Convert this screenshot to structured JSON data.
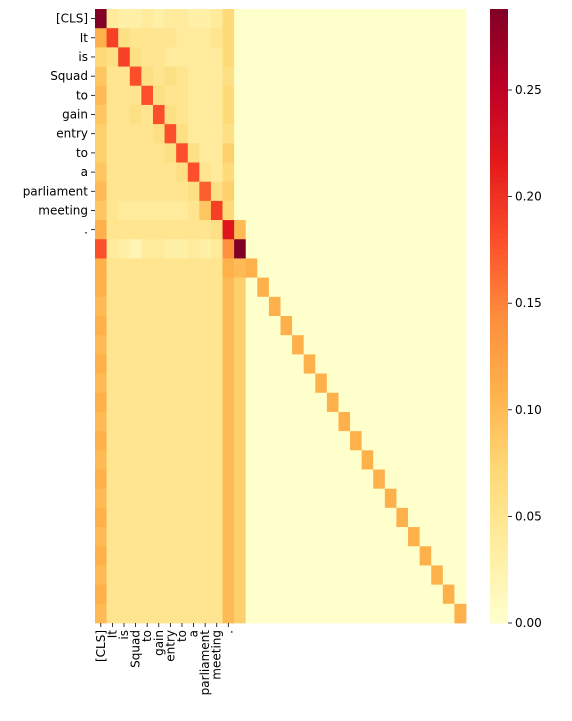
{
  "chart_data": {
    "type": "heatmap",
    "title": "",
    "xlabel": "",
    "ylabel": "",
    "tokens": [
      "[CLS]",
      "It",
      "is",
      "Squad",
      "to",
      "gain",
      "entry",
      "to",
      "a",
      "parliament",
      "meeting",
      "."
    ],
    "row_labels": [
      "[CLS]",
      "It",
      "is",
      "Squad",
      "to",
      "gain",
      "entry",
      "to",
      "a",
      "parliament",
      "meeting",
      "."
    ],
    "col_labels": [
      "[CLS]",
      "It",
      "is",
      "Squad",
      "to",
      "gain",
      "entry",
      "to",
      "a",
      "parliament",
      "meeting",
      "."
    ],
    "n_rows": 32,
    "n_cols": 32,
    "colormap": "YlOrRd",
    "colorbar": {
      "vmin": 0.0,
      "vmax": 0.288,
      "ticks": [
        0.0,
        0.05,
        0.1,
        0.15,
        0.2,
        0.25
      ],
      "tick_labels": [
        "0.00",
        "0.05",
        "0.10",
        "0.15",
        "0.20",
        "0.25"
      ]
    },
    "values": [
      [
        0.29,
        0.04,
        0.03,
        0.03,
        0.04,
        0.03,
        0.04,
        0.04,
        0.03,
        0.03,
        0.04,
        0.07,
        0.0,
        0.0,
        0.0,
        0.0,
        0.0,
        0.0,
        0.0,
        0.0,
        0.0,
        0.0,
        0.0,
        0.0,
        0.0,
        0.0,
        0.0,
        0.0,
        0.0,
        0.0,
        0.0,
        0.0
      ],
      [
        0.11,
        0.19,
        0.06,
        0.05,
        0.05,
        0.05,
        0.05,
        0.04,
        0.04,
        0.04,
        0.05,
        0.07,
        0.0,
        0.0,
        0.0,
        0.0,
        0.0,
        0.0,
        0.0,
        0.0,
        0.0,
        0.0,
        0.0,
        0.0,
        0.0,
        0.0,
        0.0,
        0.0,
        0.0,
        0.0,
        0.0,
        0.0
      ],
      [
        0.07,
        0.06,
        0.19,
        0.06,
        0.05,
        0.05,
        0.04,
        0.04,
        0.04,
        0.04,
        0.04,
        0.07,
        0.0,
        0.0,
        0.0,
        0.0,
        0.0,
        0.0,
        0.0,
        0.0,
        0.0,
        0.0,
        0.0,
        0.0,
        0.0,
        0.0,
        0.0,
        0.0,
        0.0,
        0.0,
        0.0,
        0.0
      ],
      [
        0.09,
        0.05,
        0.05,
        0.18,
        0.06,
        0.05,
        0.06,
        0.05,
        0.04,
        0.04,
        0.04,
        0.06,
        0.0,
        0.0,
        0.0,
        0.0,
        0.0,
        0.0,
        0.0,
        0.0,
        0.0,
        0.0,
        0.0,
        0.0,
        0.0,
        0.0,
        0.0,
        0.0,
        0.0,
        0.0,
        0.0,
        0.0
      ],
      [
        0.1,
        0.05,
        0.05,
        0.05,
        0.18,
        0.06,
        0.05,
        0.05,
        0.04,
        0.04,
        0.04,
        0.07,
        0.0,
        0.0,
        0.0,
        0.0,
        0.0,
        0.0,
        0.0,
        0.0,
        0.0,
        0.0,
        0.0,
        0.0,
        0.0,
        0.0,
        0.0,
        0.0,
        0.0,
        0.0,
        0.0,
        0.0
      ],
      [
        0.09,
        0.05,
        0.05,
        0.06,
        0.05,
        0.18,
        0.06,
        0.05,
        0.04,
        0.04,
        0.04,
        0.07,
        0.0,
        0.0,
        0.0,
        0.0,
        0.0,
        0.0,
        0.0,
        0.0,
        0.0,
        0.0,
        0.0,
        0.0,
        0.0,
        0.0,
        0.0,
        0.0,
        0.0,
        0.0,
        0.0,
        0.0
      ],
      [
        0.08,
        0.05,
        0.05,
        0.05,
        0.05,
        0.06,
        0.18,
        0.06,
        0.04,
        0.04,
        0.04,
        0.06,
        0.0,
        0.0,
        0.0,
        0.0,
        0.0,
        0.0,
        0.0,
        0.0,
        0.0,
        0.0,
        0.0,
        0.0,
        0.0,
        0.0,
        0.0,
        0.0,
        0.0,
        0.0,
        0.0,
        0.0
      ],
      [
        0.08,
        0.05,
        0.05,
        0.05,
        0.05,
        0.05,
        0.06,
        0.18,
        0.06,
        0.04,
        0.04,
        0.08,
        0.0,
        0.0,
        0.0,
        0.0,
        0.0,
        0.0,
        0.0,
        0.0,
        0.0,
        0.0,
        0.0,
        0.0,
        0.0,
        0.0,
        0.0,
        0.0,
        0.0,
        0.0,
        0.0,
        0.0
      ],
      [
        0.09,
        0.05,
        0.05,
        0.05,
        0.05,
        0.05,
        0.05,
        0.06,
        0.18,
        0.05,
        0.04,
        0.07,
        0.0,
        0.0,
        0.0,
        0.0,
        0.0,
        0.0,
        0.0,
        0.0,
        0.0,
        0.0,
        0.0,
        0.0,
        0.0,
        0.0,
        0.0,
        0.0,
        0.0,
        0.0,
        0.0,
        0.0
      ],
      [
        0.1,
        0.05,
        0.05,
        0.05,
        0.05,
        0.05,
        0.05,
        0.05,
        0.06,
        0.17,
        0.06,
        0.08,
        0.0,
        0.0,
        0.0,
        0.0,
        0.0,
        0.0,
        0.0,
        0.0,
        0.0,
        0.0,
        0.0,
        0.0,
        0.0,
        0.0,
        0.0,
        0.0,
        0.0,
        0.0,
        0.0,
        0.0
      ],
      [
        0.09,
        0.05,
        0.04,
        0.04,
        0.04,
        0.04,
        0.04,
        0.04,
        0.05,
        0.09,
        0.19,
        0.07,
        0.0,
        0.0,
        0.0,
        0.0,
        0.0,
        0.0,
        0.0,
        0.0,
        0.0,
        0.0,
        0.0,
        0.0,
        0.0,
        0.0,
        0.0,
        0.0,
        0.0,
        0.0,
        0.0,
        0.0
      ],
      [
        0.11,
        0.05,
        0.05,
        0.05,
        0.05,
        0.05,
        0.05,
        0.05,
        0.05,
        0.05,
        0.06,
        0.22,
        0.1,
        0.0,
        0.0,
        0.0,
        0.0,
        0.0,
        0.0,
        0.0,
        0.0,
        0.0,
        0.0,
        0.0,
        0.0,
        0.0,
        0.0,
        0.0,
        0.0,
        0.0,
        0.0,
        0.0
      ],
      [
        0.18,
        0.04,
        0.03,
        0.02,
        0.04,
        0.04,
        0.03,
        0.03,
        0.04,
        0.03,
        0.04,
        0.14,
        0.29,
        0.0,
        0.0,
        0.0,
        0.0,
        0.0,
        0.0,
        0.0,
        0.0,
        0.0,
        0.0,
        0.0,
        0.0,
        0.0,
        0.0,
        0.0,
        0.0,
        0.0,
        0.0,
        0.0
      ],
      [
        0.11,
        0.05,
        0.05,
        0.05,
        0.05,
        0.05,
        0.05,
        0.05,
        0.05,
        0.05,
        0.05,
        0.11,
        0.1,
        0.11,
        0.0,
        0.0,
        0.0,
        0.0,
        0.0,
        0.0,
        0.0,
        0.0,
        0.0,
        0.0,
        0.0,
        0.0,
        0.0,
        0.0,
        0.0,
        0.0,
        0.0,
        0.0
      ],
      [
        0.11,
        0.05,
        0.05,
        0.05,
        0.05,
        0.05,
        0.05,
        0.05,
        0.05,
        0.05,
        0.05,
        0.1,
        0.08,
        0.0,
        0.11,
        0.0,
        0.0,
        0.0,
        0.0,
        0.0,
        0.0,
        0.0,
        0.0,
        0.0,
        0.0,
        0.0,
        0.0,
        0.0,
        0.0,
        0.0,
        0.0,
        0.0
      ],
      [
        0.1,
        0.05,
        0.05,
        0.05,
        0.05,
        0.05,
        0.05,
        0.05,
        0.05,
        0.05,
        0.05,
        0.1,
        0.08,
        0.0,
        0.0,
        0.11,
        0.0,
        0.0,
        0.0,
        0.0,
        0.0,
        0.0,
        0.0,
        0.0,
        0.0,
        0.0,
        0.0,
        0.0,
        0.0,
        0.0,
        0.0,
        0.0
      ],
      [
        0.11,
        0.05,
        0.05,
        0.05,
        0.05,
        0.05,
        0.05,
        0.05,
        0.05,
        0.05,
        0.05,
        0.1,
        0.08,
        0.0,
        0.0,
        0.0,
        0.11,
        0.0,
        0.0,
        0.0,
        0.0,
        0.0,
        0.0,
        0.0,
        0.0,
        0.0,
        0.0,
        0.0,
        0.0,
        0.0,
        0.0,
        0.0
      ],
      [
        0.1,
        0.05,
        0.05,
        0.05,
        0.05,
        0.05,
        0.05,
        0.05,
        0.05,
        0.05,
        0.05,
        0.1,
        0.08,
        0.0,
        0.0,
        0.0,
        0.0,
        0.11,
        0.0,
        0.0,
        0.0,
        0.0,
        0.0,
        0.0,
        0.0,
        0.0,
        0.0,
        0.0,
        0.0,
        0.0,
        0.0,
        0.0
      ],
      [
        0.11,
        0.05,
        0.05,
        0.05,
        0.05,
        0.05,
        0.05,
        0.05,
        0.05,
        0.05,
        0.05,
        0.1,
        0.08,
        0.0,
        0.0,
        0.0,
        0.0,
        0.0,
        0.11,
        0.0,
        0.0,
        0.0,
        0.0,
        0.0,
        0.0,
        0.0,
        0.0,
        0.0,
        0.0,
        0.0,
        0.0,
        0.0
      ],
      [
        0.1,
        0.05,
        0.05,
        0.05,
        0.05,
        0.05,
        0.05,
        0.05,
        0.05,
        0.05,
        0.05,
        0.1,
        0.08,
        0.0,
        0.0,
        0.0,
        0.0,
        0.0,
        0.0,
        0.11,
        0.0,
        0.0,
        0.0,
        0.0,
        0.0,
        0.0,
        0.0,
        0.0,
        0.0,
        0.0,
        0.0,
        0.0
      ],
      [
        0.11,
        0.05,
        0.05,
        0.05,
        0.05,
        0.05,
        0.05,
        0.05,
        0.05,
        0.05,
        0.05,
        0.1,
        0.08,
        0.0,
        0.0,
        0.0,
        0.0,
        0.0,
        0.0,
        0.0,
        0.11,
        0.0,
        0.0,
        0.0,
        0.0,
        0.0,
        0.0,
        0.0,
        0.0,
        0.0,
        0.0,
        0.0
      ],
      [
        0.1,
        0.05,
        0.05,
        0.05,
        0.05,
        0.05,
        0.05,
        0.05,
        0.05,
        0.05,
        0.05,
        0.1,
        0.08,
        0.0,
        0.0,
        0.0,
        0.0,
        0.0,
        0.0,
        0.0,
        0.0,
        0.11,
        0.0,
        0.0,
        0.0,
        0.0,
        0.0,
        0.0,
        0.0,
        0.0,
        0.0,
        0.0
      ],
      [
        0.11,
        0.05,
        0.05,
        0.05,
        0.05,
        0.05,
        0.05,
        0.05,
        0.05,
        0.05,
        0.05,
        0.1,
        0.08,
        0.0,
        0.0,
        0.0,
        0.0,
        0.0,
        0.0,
        0.0,
        0.0,
        0.0,
        0.11,
        0.0,
        0.0,
        0.0,
        0.0,
        0.0,
        0.0,
        0.0,
        0.0,
        0.0
      ],
      [
        0.1,
        0.05,
        0.05,
        0.05,
        0.05,
        0.05,
        0.05,
        0.05,
        0.05,
        0.05,
        0.05,
        0.1,
        0.08,
        0.0,
        0.0,
        0.0,
        0.0,
        0.0,
        0.0,
        0.0,
        0.0,
        0.0,
        0.0,
        0.11,
        0.0,
        0.0,
        0.0,
        0.0,
        0.0,
        0.0,
        0.0,
        0.0
      ],
      [
        0.11,
        0.05,
        0.05,
        0.05,
        0.05,
        0.05,
        0.05,
        0.05,
        0.05,
        0.05,
        0.05,
        0.1,
        0.08,
        0.0,
        0.0,
        0.0,
        0.0,
        0.0,
        0.0,
        0.0,
        0.0,
        0.0,
        0.0,
        0.0,
        0.11,
        0.0,
        0.0,
        0.0,
        0.0,
        0.0,
        0.0,
        0.0
      ],
      [
        0.1,
        0.05,
        0.05,
        0.05,
        0.05,
        0.05,
        0.05,
        0.05,
        0.05,
        0.05,
        0.05,
        0.1,
        0.08,
        0.0,
        0.0,
        0.0,
        0.0,
        0.0,
        0.0,
        0.0,
        0.0,
        0.0,
        0.0,
        0.0,
        0.0,
        0.11,
        0.0,
        0.0,
        0.0,
        0.0,
        0.0,
        0.0
      ],
      [
        0.11,
        0.05,
        0.05,
        0.05,
        0.05,
        0.05,
        0.05,
        0.05,
        0.05,
        0.05,
        0.05,
        0.1,
        0.08,
        0.0,
        0.0,
        0.0,
        0.0,
        0.0,
        0.0,
        0.0,
        0.0,
        0.0,
        0.0,
        0.0,
        0.0,
        0.0,
        0.11,
        0.0,
        0.0,
        0.0,
        0.0,
        0.0
      ],
      [
        0.1,
        0.05,
        0.05,
        0.05,
        0.05,
        0.05,
        0.05,
        0.05,
        0.05,
        0.05,
        0.05,
        0.1,
        0.08,
        0.0,
        0.0,
        0.0,
        0.0,
        0.0,
        0.0,
        0.0,
        0.0,
        0.0,
        0.0,
        0.0,
        0.0,
        0.0,
        0.0,
        0.11,
        0.0,
        0.0,
        0.0,
        0.0
      ],
      [
        0.11,
        0.05,
        0.05,
        0.05,
        0.05,
        0.05,
        0.05,
        0.05,
        0.05,
        0.05,
        0.05,
        0.1,
        0.08,
        0.0,
        0.0,
        0.0,
        0.0,
        0.0,
        0.0,
        0.0,
        0.0,
        0.0,
        0.0,
        0.0,
        0.0,
        0.0,
        0.0,
        0.0,
        0.11,
        0.0,
        0.0,
        0.0
      ],
      [
        0.1,
        0.05,
        0.05,
        0.05,
        0.05,
        0.05,
        0.05,
        0.05,
        0.05,
        0.05,
        0.05,
        0.1,
        0.08,
        0.0,
        0.0,
        0.0,
        0.0,
        0.0,
        0.0,
        0.0,
        0.0,
        0.0,
        0.0,
        0.0,
        0.0,
        0.0,
        0.0,
        0.0,
        0.0,
        0.11,
        0.0,
        0.0
      ],
      [
        0.11,
        0.05,
        0.05,
        0.05,
        0.05,
        0.05,
        0.05,
        0.05,
        0.05,
        0.05,
        0.05,
        0.1,
        0.08,
        0.0,
        0.0,
        0.0,
        0.0,
        0.0,
        0.0,
        0.0,
        0.0,
        0.0,
        0.0,
        0.0,
        0.0,
        0.0,
        0.0,
        0.0,
        0.0,
        0.0,
        0.11,
        0.0
      ],
      [
        0.1,
        0.05,
        0.05,
        0.05,
        0.05,
        0.05,
        0.05,
        0.05,
        0.05,
        0.05,
        0.05,
        0.1,
        0.08,
        0.0,
        0.0,
        0.0,
        0.0,
        0.0,
        0.0,
        0.0,
        0.0,
        0.0,
        0.0,
        0.0,
        0.0,
        0.0,
        0.0,
        0.0,
        0.0,
        0.0,
        0.0,
        0.11
      ]
    ]
  }
}
